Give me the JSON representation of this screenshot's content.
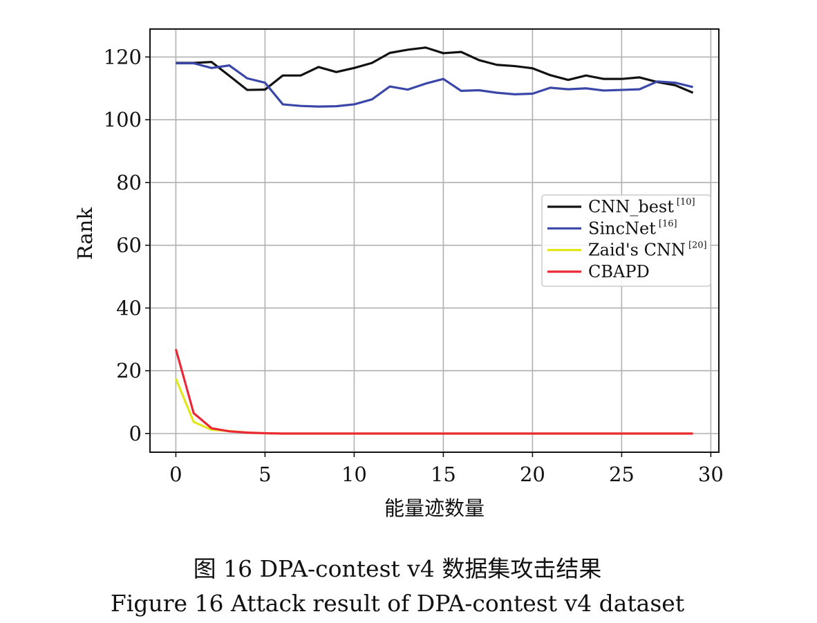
{
  "chart_data": {
    "type": "line",
    "title": "",
    "xlabel": "能量迹数量",
    "ylabel": "Rank",
    "xlim": [
      -1.45,
      30.45
    ],
    "ylim": [
      -5.95,
      128.9
    ],
    "xticks": [
      0,
      5,
      10,
      15,
      20,
      25,
      30
    ],
    "yticks": [
      0,
      20,
      40,
      60,
      80,
      100,
      120
    ],
    "grid": true,
    "legend_position": "center-right",
    "x": [
      0,
      1,
      2,
      3,
      4,
      5,
      6,
      7,
      8,
      9,
      10,
      11,
      12,
      13,
      14,
      15,
      16,
      17,
      18,
      19,
      20,
      21,
      22,
      23,
      24,
      25,
      26,
      27,
      28,
      29
    ],
    "series": [
      {
        "name": "CNN_best",
        "ref": "[10]",
        "color": "#111111",
        "values": [
          118.1,
          118.1,
          118.4,
          114.0,
          109.5,
          109.6,
          114.1,
          114.1,
          116.8,
          115.2,
          116.5,
          118.1,
          121.3,
          122.3,
          123.0,
          121.2,
          121.6,
          119.0,
          117.5,
          117.1,
          116.4,
          114.2,
          112.7,
          114.1,
          113.0,
          113.0,
          113.5,
          112.0,
          111.0,
          108.6
        ]
      },
      {
        "name": "SincNet",
        "ref": "[16]",
        "color": "#3a47a8",
        "values": [
          118.0,
          118.0,
          116.5,
          117.3,
          113.2,
          111.8,
          104.9,
          104.4,
          104.2,
          104.3,
          104.9,
          106.5,
          110.6,
          109.6,
          111.5,
          113.0,
          109.2,
          109.4,
          108.6,
          108.1,
          108.3,
          110.2,
          109.7,
          110.0,
          109.3,
          109.5,
          109.7,
          112.2,
          111.8,
          110.4
        ]
      },
      {
        "name": "Zaid's CNN",
        "ref": "[20]",
        "color": "#e2e71c",
        "values": [
          17.5,
          3.7,
          1.2,
          0.8,
          0.3,
          0.1,
          0,
          0,
          0,
          0,
          0,
          0,
          0,
          0,
          0,
          0,
          0,
          0,
          0,
          0,
          0,
          0,
          0,
          0,
          0,
          0,
          0,
          0,
          0,
          0
        ]
      },
      {
        "name": "CBAPD",
        "ref": "",
        "color": "#ea2836",
        "values": [
          26.9,
          6.5,
          1.7,
          0.7,
          0.3,
          0.1,
          0,
          0,
          0,
          0,
          0,
          0,
          0,
          0,
          0,
          0,
          0,
          0,
          0,
          0,
          0,
          0,
          0,
          0,
          0,
          0,
          0,
          0,
          0,
          0
        ]
      }
    ]
  },
  "caption": {
    "cn": "图 16  DPA-contest v4 数据集攻击结果",
    "en": "Figure 16  Attack result of DPA-contest v4 dataset"
  }
}
